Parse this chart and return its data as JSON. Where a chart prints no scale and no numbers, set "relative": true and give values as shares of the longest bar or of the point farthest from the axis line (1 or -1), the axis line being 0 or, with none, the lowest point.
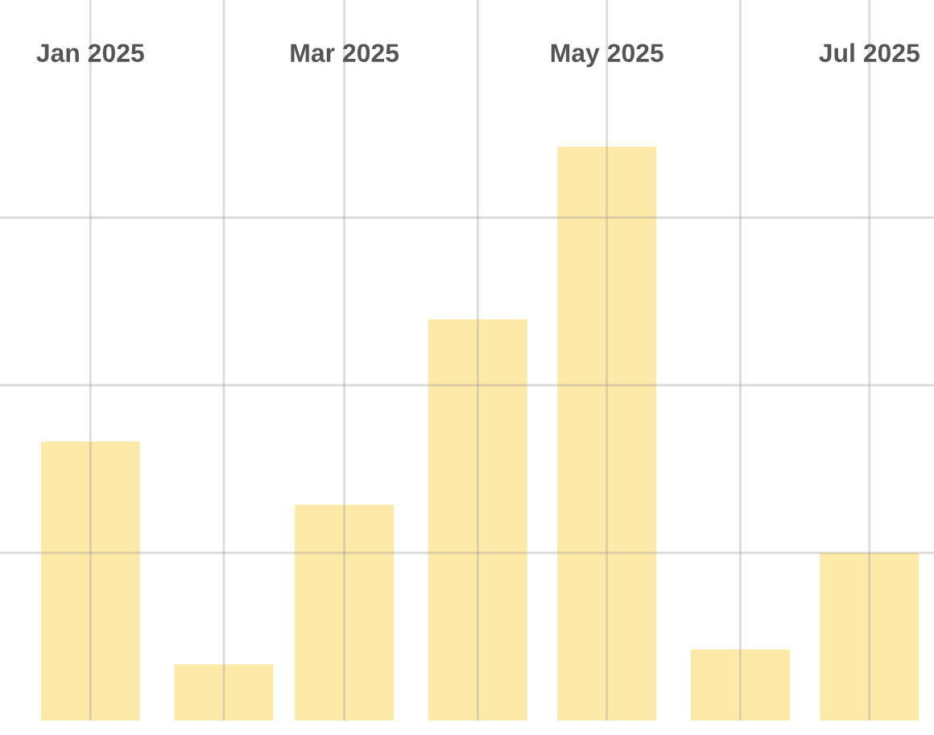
{
  "chart_data": {
    "type": "bar",
    "relative": true,
    "x": [
      "2025-01",
      "2025-02",
      "2025-03",
      "2025-04",
      "2025-05",
      "2025-06",
      "2025-07"
    ],
    "values": [
      0.486,
      0.098,
      0.376,
      0.699,
      1,
      0.124,
      0.292
    ],
    "color": "#fdeaa9",
    "xlim": [
      "2024-12-11",
      "2025-07-16"
    ],
    "xticks": [
      {
        "value": "2025-01",
        "label": "Jan 2025"
      },
      {
        "value": "2025-02",
        "label": null
      },
      {
        "value": "2025-03",
        "label": "Mar 2025"
      },
      {
        "value": "2025-04",
        "label": null
      },
      {
        "value": "2025-05",
        "label": "May 2025"
      },
      {
        "value": "2025-06",
        "label": null
      },
      {
        "value": "2025-07",
        "label": "Jul 2025"
      }
    ],
    "grid": true
  }
}
